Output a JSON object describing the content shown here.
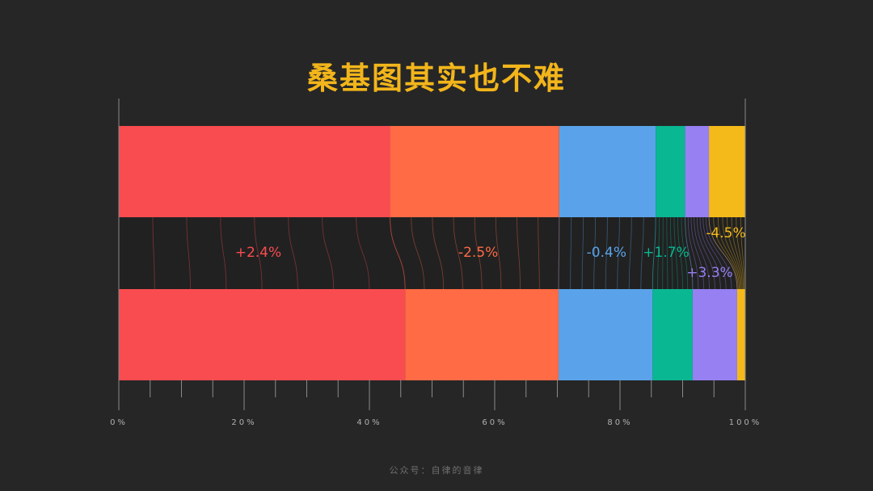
{
  "title": "桑基图其实也不难",
  "footer": "公众号：自律的音律",
  "chart_data": {
    "type": "bar",
    "stacked": true,
    "orientation": "horizontal",
    "normalized_percent": true,
    "xlim": [
      0,
      100
    ],
    "x_ticks": [
      "0%",
      "20%",
      "40%",
      "60%",
      "80%",
      "100%"
    ],
    "grid": false,
    "bars": [
      {
        "segments": [
          43.3,
          27.0,
          15.4,
          4.7,
          3.8,
          5.8
        ]
      },
      {
        "segments": [
          45.7,
          24.5,
          15.0,
          6.4,
          7.1,
          1.3
        ]
      }
    ],
    "series": [
      {
        "color": "#f94c50",
        "change": "+2.4%"
      },
      {
        "color": "#fe6b45",
        "change": "-2.5%"
      },
      {
        "color": "#5aa3ea",
        "change": "-0.4%"
      },
      {
        "color": "#0ab793",
        "change": "+1.7%"
      },
      {
        "color": "#9680f2",
        "change": "+3.3%"
      },
      {
        "color": "#f4ba1a",
        "change": "-4.5%"
      }
    ],
    "colors": {
      "background": "#262626",
      "axis": "#8a8a8a",
      "tick_label": "#b0b0b0"
    }
  }
}
